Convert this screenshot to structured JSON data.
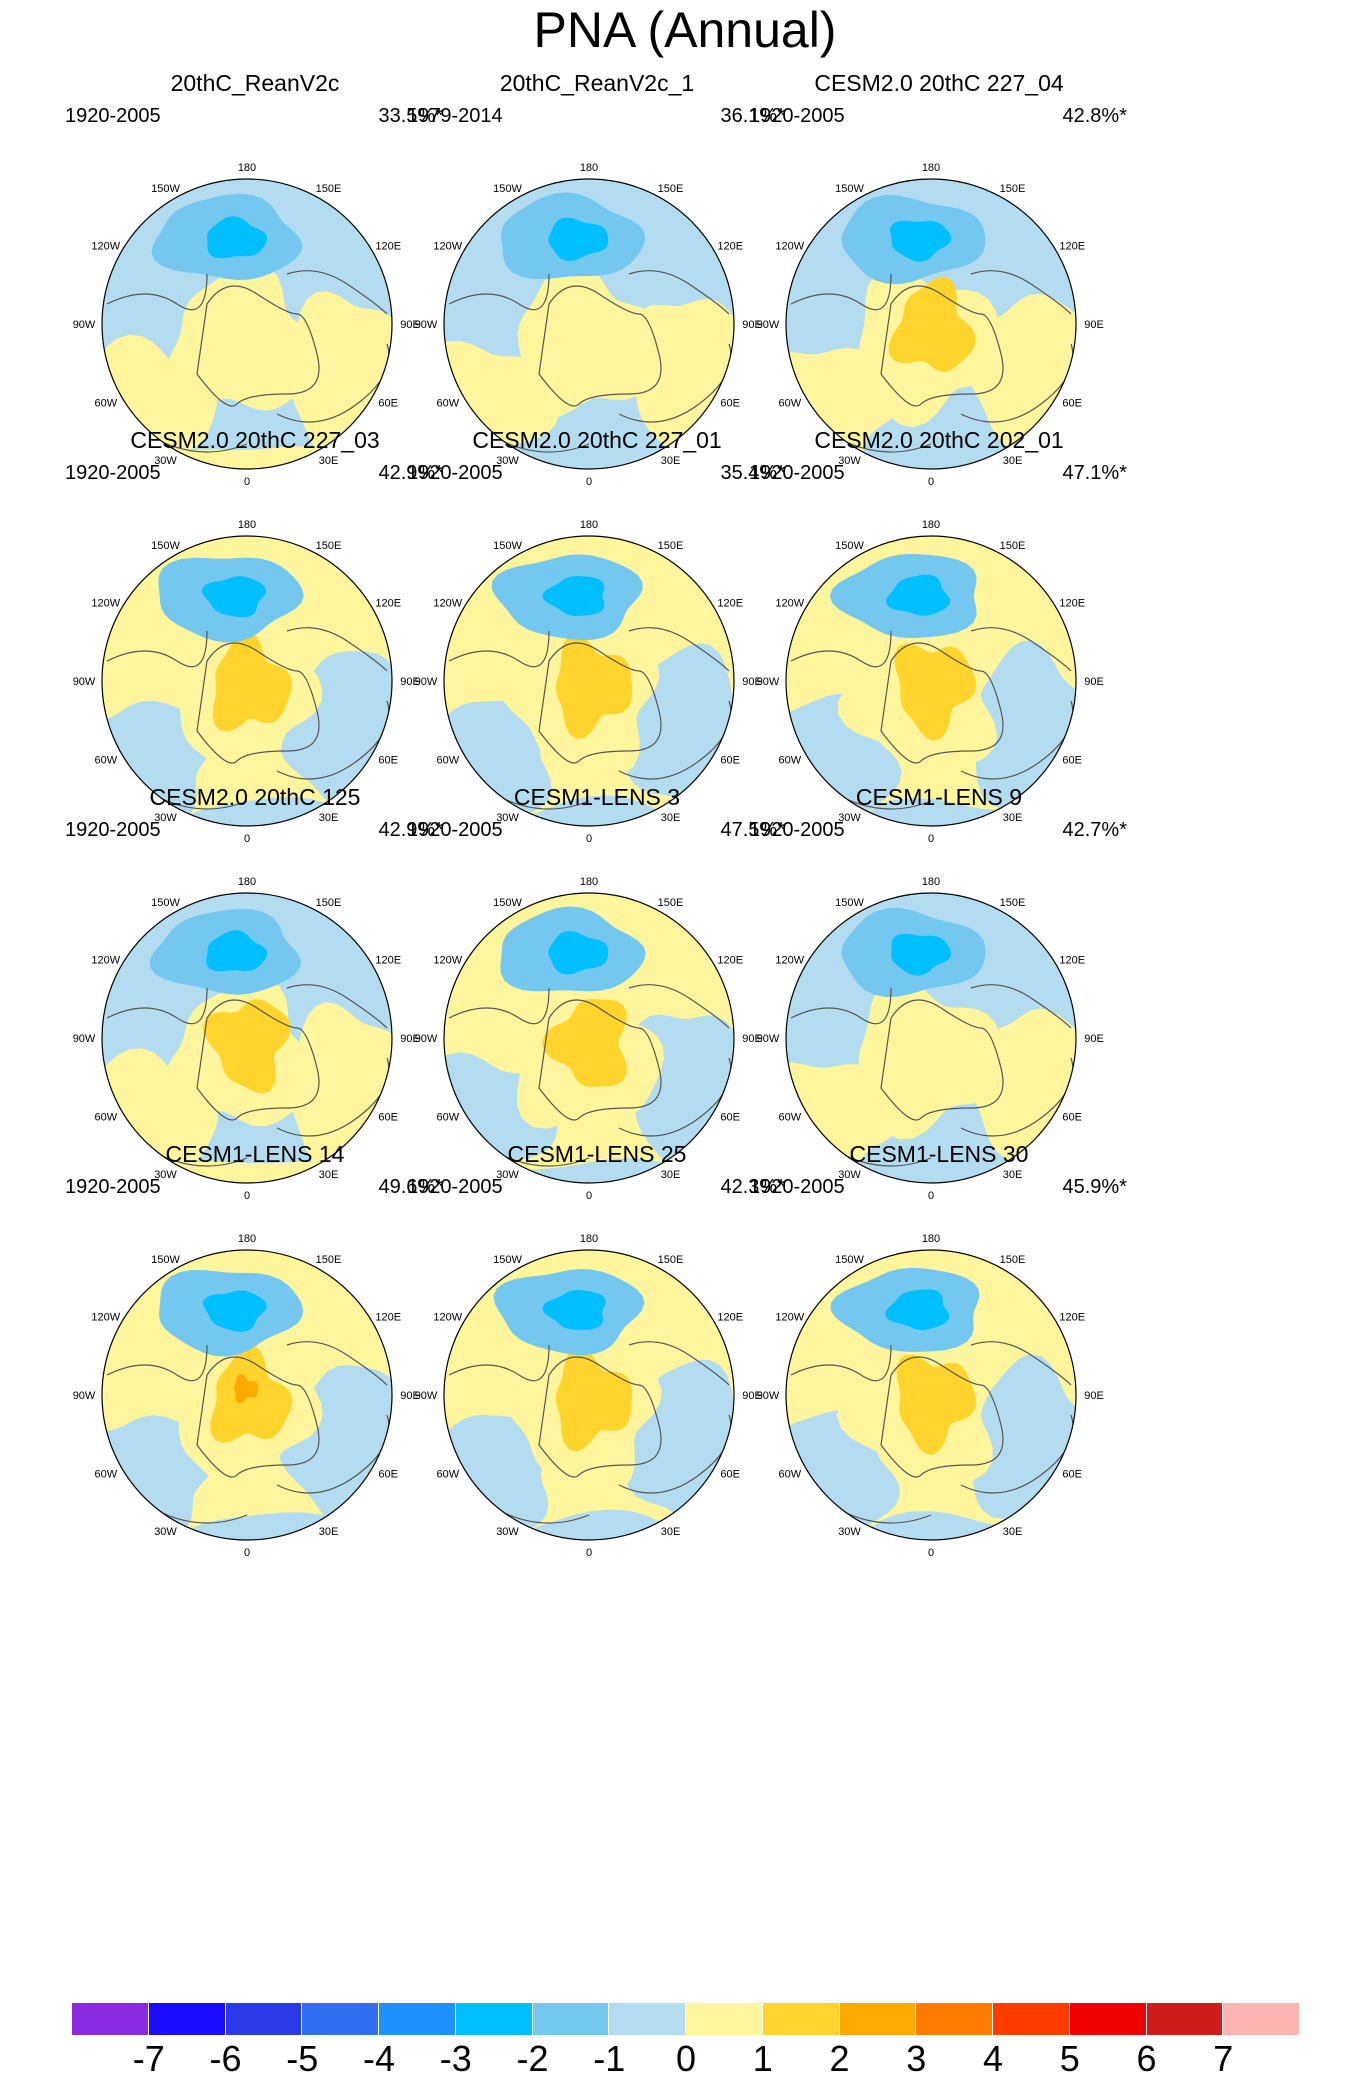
{
  "title": "PNA (Annual)",
  "colors": {
    "neg3": "#00bfff",
    "neg2": "#74c8f0",
    "neg1": "#b4dcf0",
    "pos1": "#fff59c",
    "pos2": "#ffd42c",
    "pos3": "#ffaa00",
    "pos4": "#ff7b00",
    "land_line": "#555555",
    "border": "#000000"
  },
  "longitude_labels": [
    "180",
    "150E",
    "120E",
    "90E",
    "60E",
    "30E",
    "0",
    "30W",
    "60W",
    "90W",
    "120W",
    "150W"
  ],
  "panels": [
    {
      "title": "20thC_ReanV2c",
      "period": "1920-2005",
      "percent": "33.5%*",
      "pattern": {
        "center_max": 1,
        "north_low": 3,
        "ocean_sign": "neg"
      }
    },
    {
      "title": "20thC_ReanV2c_1",
      "period": "1979-2014",
      "percent": "36.1%*",
      "pattern": {
        "center_max": 1,
        "north_low": 3,
        "ocean_sign": "mixed"
      }
    },
    {
      "title": "CESM2.0 20thC 227_04",
      "period": "1920-2005",
      "percent": "42.8%*",
      "pattern": {
        "center_max": 2,
        "north_low": 3,
        "ocean_sign": "mixed"
      }
    },
    {
      "title": "CESM2.0 20thC 227_03",
      "period": "1920-2005",
      "percent": "42.9%*",
      "pattern": {
        "center_max": 2,
        "north_low": 3,
        "ocean_sign": "pos"
      }
    },
    {
      "title": "CESM2.0 20thC 227_01",
      "period": "1920-2005",
      "percent": "35.4%*",
      "pattern": {
        "center_max": 2,
        "north_low": 3,
        "ocean_sign": "pos"
      }
    },
    {
      "title": "CESM2.0 20thC 202_01",
      "period": "1920-2005",
      "percent": "47.1%*",
      "pattern": {
        "center_max": 2,
        "north_low": 3,
        "ocean_sign": "pos"
      }
    },
    {
      "title": "CESM2.0 20thC 125",
      "period": "1920-2005",
      "percent": "42.9%*",
      "pattern": {
        "center_max": 2,
        "north_low": 3,
        "ocean_sign": "neg"
      }
    },
    {
      "title": "CESM1-LENS 3",
      "period": "1920-2005",
      "percent": "47.5%*",
      "pattern": {
        "center_max": 2,
        "north_low": 3,
        "ocean_sign": "pos"
      }
    },
    {
      "title": "CESM1-LENS 9",
      "period": "1920-2005",
      "percent": "42.7%*",
      "pattern": {
        "center_max": 1,
        "north_low": 3,
        "ocean_sign": "mixed"
      }
    },
    {
      "title": "CESM1-LENS 14",
      "period": "1920-2005",
      "percent": "49.6%*",
      "pattern": {
        "center_max": 3,
        "north_low": 3,
        "ocean_sign": "pos"
      }
    },
    {
      "title": "CESM1-LENS 25",
      "period": "1920-2005",
      "percent": "42.3%*",
      "pattern": {
        "center_max": 2,
        "north_low": 3,
        "ocean_sign": "pos"
      }
    },
    {
      "title": "CESM1-LENS 30",
      "period": "1920-2005",
      "percent": "45.9%*",
      "pattern": {
        "center_max": 2,
        "north_low": 3,
        "ocean_sign": "pos"
      }
    }
  ],
  "colorbar": {
    "boxes": [
      "#8a2be2",
      "#1a0aff",
      "#2a3ae8",
      "#3070f0",
      "#1e90ff",
      "#00bfff",
      "#74c8f0",
      "#b4dcf0",
      "#fff59c",
      "#ffd42c",
      "#ffaa00",
      "#ff7b00",
      "#ff3c00",
      "#f00000",
      "#d11c1c",
      "#ffb4b4"
    ],
    "labels": [
      "-7",
      "-6",
      "-5",
      "-4",
      "-3",
      "-2",
      "-1",
      "0",
      "1",
      "2",
      "3",
      "4",
      "5",
      "6",
      "7"
    ]
  }
}
